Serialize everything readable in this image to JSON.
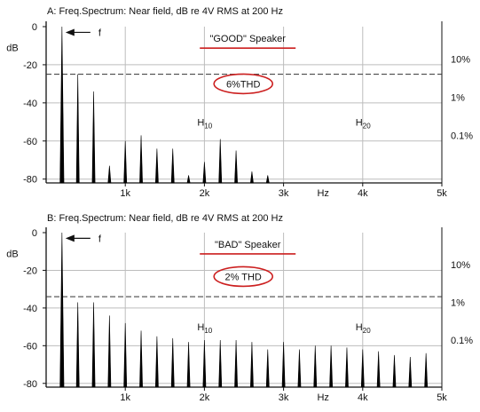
{
  "colors": {
    "axis": "#111111",
    "grid": "#bdbdbd",
    "bar": "#000000",
    "threshold": "#333333",
    "annotation": "#cc1f1f"
  },
  "chart_data": [
    {
      "type": "bar",
      "title": "A: Freq.Spectrum: Near field, dB re 4V RMS at 200 Hz",
      "label": "\"GOOD\" Speaker",
      "ylabel": "dB",
      "xunit": "Hz",
      "xlim": [
        0,
        5000
      ],
      "ylim": [
        -82,
        0
      ],
      "yticks": [
        0,
        -20,
        -40,
        -60,
        -80
      ],
      "xticks": [
        {
          "value": 1000,
          "label": "1k"
        },
        {
          "value": 2000,
          "label": "2k"
        },
        {
          "value": 3000,
          "label": "3k"
        },
        {
          "value": 4000,
          "label": "4k"
        },
        {
          "value": 5000,
          "label": "5k"
        }
      ],
      "right_axis": [
        {
          "value": -17,
          "label": "10%"
        },
        {
          "value": -37,
          "label": "1%"
        },
        {
          "value": -57,
          "label": "0.1%"
        }
      ],
      "threshold_db": -25,
      "thd_label": "6%THD",
      "fundamental_marker": "f",
      "harmonic_labels": [
        {
          "n": "10",
          "x": 2000,
          "db": -50
        },
        {
          "n": "20",
          "x": 4000,
          "db": -50
        }
      ],
      "harmonics": {
        "x": [
          200,
          400,
          600,
          800,
          1000,
          1200,
          1400,
          1600,
          1800,
          2000,
          2200,
          2400,
          2600,
          2800
        ],
        "db": [
          0,
          -25,
          -34,
          -73,
          -60,
          -57,
          -64,
          -64,
          -78,
          -71,
          -59,
          -65,
          -76,
          -78
        ]
      }
    },
    {
      "type": "bar",
      "title": "B: Freq.Spectrum: Near field, dB re 4V RMS at 200 Hz",
      "label": "\"BAD\" Speaker",
      "ylabel": "dB",
      "xunit": "Hz",
      "xlim": [
        0,
        5000
      ],
      "ylim": [
        -82,
        0
      ],
      "yticks": [
        0,
        -20,
        -40,
        -60,
        -80
      ],
      "xticks": [
        {
          "value": 1000,
          "label": "1k"
        },
        {
          "value": 2000,
          "label": "2k"
        },
        {
          "value": 3000,
          "label": "3k"
        },
        {
          "value": 4000,
          "label": "4k"
        },
        {
          "value": 5000,
          "label": "5k"
        }
      ],
      "right_axis": [
        {
          "value": -17,
          "label": "10%"
        },
        {
          "value": -37,
          "label": "1%"
        },
        {
          "value": -57,
          "label": "0.1%"
        }
      ],
      "threshold_db": -34,
      "thd_label": "2% THD",
      "fundamental_marker": "f",
      "harmonic_labels": [
        {
          "n": "10",
          "x": 2000,
          "db": -50
        },
        {
          "n": "20",
          "x": 4000,
          "db": -50
        }
      ],
      "harmonics": {
        "x": [
          200,
          400,
          600,
          800,
          1000,
          1200,
          1400,
          1600,
          1800,
          2000,
          2200,
          2400,
          2600,
          2800,
          3000,
          3200,
          3400,
          3600,
          3800,
          4000,
          4200,
          4400,
          4600,
          4800
        ],
        "db": [
          0,
          -37,
          -37,
          -44,
          -48,
          -52,
          -55,
          -56,
          -58,
          -57,
          -57,
          -57,
          -58,
          -62,
          -58,
          -62,
          -60,
          -60,
          -61,
          -62,
          -63,
          -65,
          -66,
          -64
        ]
      }
    }
  ]
}
